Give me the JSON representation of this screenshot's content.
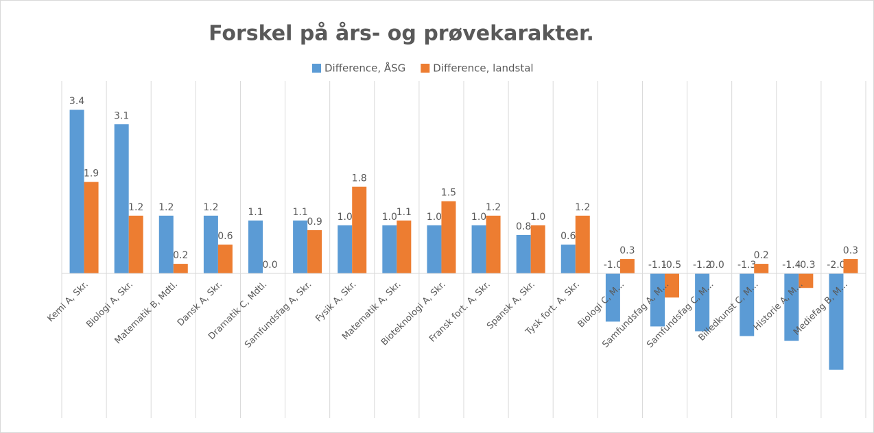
{
  "chart_data": {
    "type": "bar",
    "title": "Forskel på års- og prøvekarakter.",
    "categories": [
      "Kemi A, Skr.",
      "Biologi A, Skr.",
      "Matematik B, Mdtl.",
      "Dansk A, Skr.",
      "Dramatik C, Mdtl.",
      "Samfundsfag A, Skr.",
      "Fysik A, Skr.",
      "Matematik A, Skr.",
      "Bioteknologi A, Skr.",
      "Fransk fort. A, Skr.",
      "Spansk A, Skr.",
      "Tysk fort. A, Skr.",
      "Biologi C, M...",
      "Samfundsfag A, M...",
      "Samfundsfag C, M...",
      "Billedkunst C, M...",
      "Historie A, M...",
      "Mediefag B, M..."
    ],
    "series": [
      {
        "name": "Difference, ÅSG",
        "color": "#5b9bd5",
        "values": [
          3.4,
          3.1,
          1.2,
          1.2,
          1.1,
          1.1,
          1.0,
          1.0,
          1.0,
          1.0,
          0.8,
          0.6,
          -1.0,
          -1.1,
          -1.2,
          -1.3,
          -1.4,
          -2.0
        ],
        "value_labels": [
          "3.4",
          "3.1",
          "1.2",
          "1.2",
          "1.1",
          "1.1",
          "1.0",
          "1.0",
          "1.0",
          "1.0",
          "0.8",
          "0.6",
          "-1.0",
          "-1.1",
          "-1.2",
          "-1.3",
          "-1.4",
          "-2.0"
        ]
      },
      {
        "name": "Difference, landstal",
        "color": "#ed7d31",
        "values": [
          1.9,
          1.2,
          0.2,
          0.6,
          0.0,
          0.9,
          1.8,
          1.1,
          1.5,
          1.2,
          1.0,
          1.2,
          0.3,
          -0.5,
          0.0,
          0.2,
          -0.3,
          0.3
        ],
        "value_labels": [
          "1.9",
          "1.2",
          "0.2",
          "0.6",
          "0.0",
          "0.9",
          "1.8",
          "1.1",
          "1.5",
          "1.2",
          "1.0",
          "1.2",
          "0.3",
          "-0.5",
          "0.0",
          "0.2",
          "-0.3",
          "0.3"
        ]
      }
    ],
    "ylim": [
      -3,
      4
    ],
    "legend": "top"
  }
}
